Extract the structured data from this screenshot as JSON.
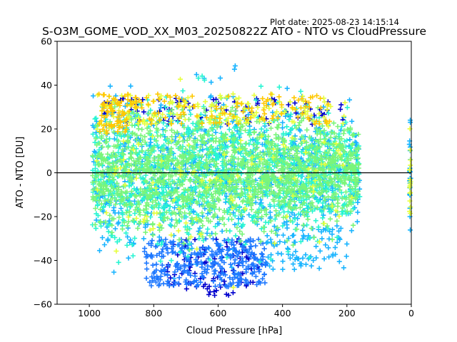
{
  "plot_date_label": "Plot date: 2025-08-23 14:15:14",
  "chart_data": {
    "type": "scatter",
    "title": "S-O3M_GOME_VOD_XX_M03_20250822Z ATO - NTO vs CloudPressure",
    "xlabel": "Cloud Pressure [hPa]",
    "ylabel": "ATO - NTO [DU]",
    "xlim": [
      1100,
      0
    ],
    "ylim": [
      -60,
      60
    ],
    "x_ticks": [
      1000,
      800,
      600,
      400,
      200,
      0
    ],
    "y_ticks": [
      -60,
      -40,
      -20,
      0,
      20,
      40,
      60
    ],
    "reference_line_y": 0,
    "marker": "plus",
    "grid": false,
    "colors": {
      "navy": "#0000cd",
      "blue": "#1e78ff",
      "cyan": "#19b4ff",
      "aqua": "#28f5d2",
      "green": "#7af57a",
      "yellow": "#e6ff3c",
      "orange": "#ffc800"
    }
  }
}
